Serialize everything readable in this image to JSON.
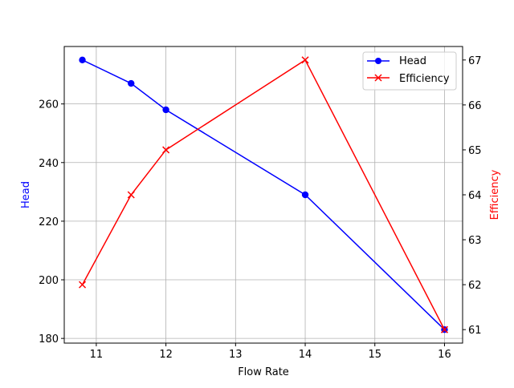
{
  "chart_data": {
    "type": "line",
    "title": "",
    "xlabel": "Flow Rate",
    "ylabel": "Head",
    "y2label": "Efficiency",
    "x": [
      10.8,
      11.5,
      12,
      14,
      16
    ],
    "series": [
      {
        "name": "Head",
        "axis": "left",
        "color": "#0000ff",
        "marker": "circle",
        "values": [
          275,
          267,
          258,
          229,
          183
        ]
      },
      {
        "name": "Efficiency",
        "axis": "right",
        "color": "#ff0000",
        "marker": "x",
        "values": [
          62,
          64,
          65,
          67,
          61
        ]
      }
    ],
    "xlim": [
      10.54,
      16.26
    ],
    "ylim": [
      178.4,
      279.6
    ],
    "y2lim": [
      60.7,
      67.3
    ],
    "xticks": [
      11,
      12,
      13,
      14,
      15,
      16
    ],
    "yticks": [
      180,
      200,
      220,
      240,
      260
    ],
    "y2ticks": [
      61,
      62,
      63,
      64,
      65,
      66,
      67
    ],
    "grid": true,
    "legend_position": "upper right"
  },
  "legend": {
    "items": [
      "Head",
      "Efficiency"
    ]
  },
  "axes": {
    "xlabel": "Flow Rate",
    "ylabel": "Head",
    "y2label": "Efficiency"
  }
}
